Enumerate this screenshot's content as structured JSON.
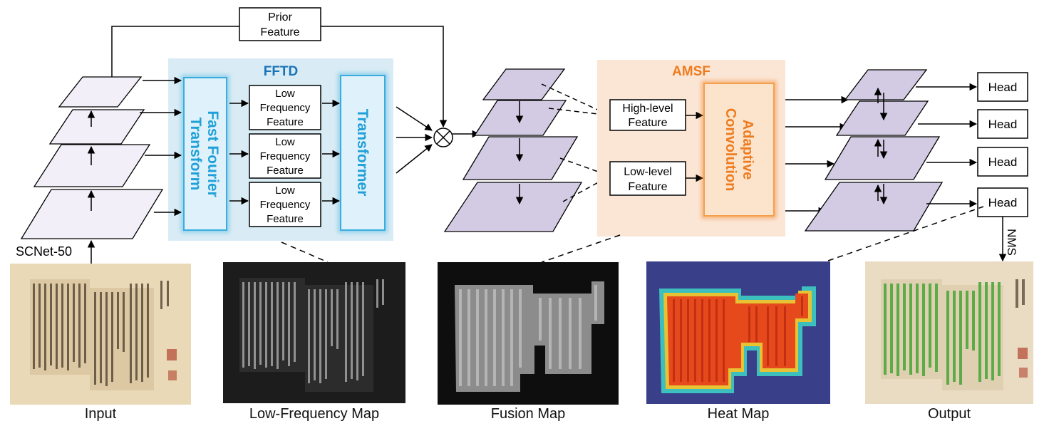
{
  "prior": {
    "line1": "Prior",
    "line2": "Feature"
  },
  "backbone": {
    "label": "SCNet-50"
  },
  "fftd": {
    "title": "FFTD",
    "fft_line1": "Fast Fourier",
    "fft_line2": "Transform",
    "transformer": "Transformer",
    "low_freq": {
      "line1": "Low",
      "line2": "Frequency",
      "line3": "Feature"
    }
  },
  "fusion_op": "⊗",
  "amsf": {
    "title": "AMSF",
    "high_line1": "High-level",
    "high_line2": "Feature",
    "low_line1": "Low-level",
    "low_line2": "Feature",
    "adaptive_line1": "Adaptive",
    "adaptive_line2": "Convolution"
  },
  "heads": [
    "Head",
    "Head",
    "Head",
    "Head"
  ],
  "nms": "NMS",
  "captions": {
    "input": "Input",
    "lowfreq": "Low-Frequency Map",
    "fusion": "Fusion Map",
    "heat": "Heat Map",
    "output": "Output"
  },
  "colors": {
    "fftd_bg": "#d9ecf5",
    "fftd_accent": "#1fa0d8",
    "amsf_bg": "#fbe6d6",
    "amsf_accent": "#ee7b1e",
    "feature_plane": "#f2eff8",
    "pyramid_plane": "#d3cbe3"
  }
}
